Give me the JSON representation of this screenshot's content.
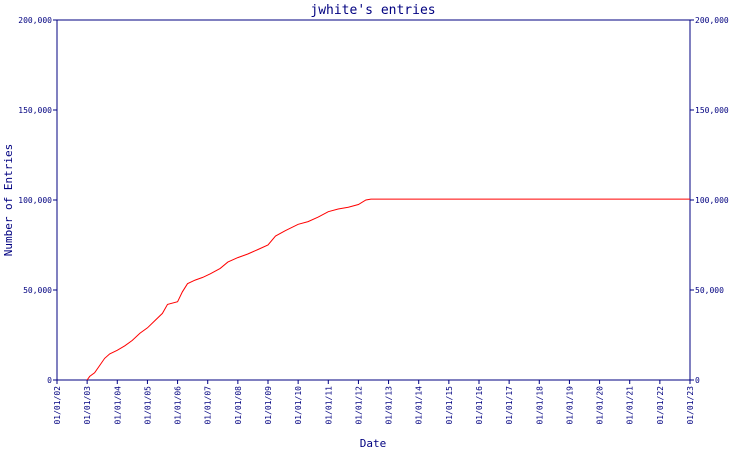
{
  "chart_data": {
    "type": "line",
    "title": "jwhite's entries",
    "xlabel": "Date",
    "ylabel": "Number of Entries",
    "x_ticks": [
      "01/01/02",
      "01/01/03",
      "01/01/04",
      "01/01/05",
      "01/01/06",
      "01/01/07",
      "01/01/08",
      "01/01/09",
      "01/01/10",
      "01/01/11",
      "01/01/12",
      "01/01/13",
      "01/01/14",
      "01/01/15",
      "01/01/16",
      "01/01/17",
      "01/01/18",
      "01/01/19",
      "01/01/20",
      "01/01/21",
      "01/01/22",
      "01/01/23"
    ],
    "y_ticks": [
      "0",
      "50,000",
      "100,000",
      "150,000",
      "200,000"
    ],
    "ylim": [
      0,
      200000
    ],
    "xlim": [
      "2002-01-01",
      "2023-01-01"
    ],
    "grid": false,
    "colors": {
      "axis": "#000080",
      "line": "#ff0000",
      "background": "#ffffff"
    },
    "series": [
      {
        "values": [
          {
            "x": "2003-01-01",
            "y": 0
          },
          {
            "x": "2003-02-01",
            "y": 2000
          },
          {
            "x": "2003-04-01",
            "y": 4000
          },
          {
            "x": "2003-06-01",
            "y": 8000
          },
          {
            "x": "2003-08-01",
            "y": 12000
          },
          {
            "x": "2003-10-01",
            "y": 14500
          },
          {
            "x": "2004-01-01",
            "y": 16500
          },
          {
            "x": "2004-04-01",
            "y": 19000
          },
          {
            "x": "2004-07-01",
            "y": 22000
          },
          {
            "x": "2004-10-01",
            "y": 26000
          },
          {
            "x": "2005-01-01",
            "y": 29000
          },
          {
            "x": "2005-04-01",
            "y": 33000
          },
          {
            "x": "2005-07-01",
            "y": 37000
          },
          {
            "x": "2005-09-01",
            "y": 42000
          },
          {
            "x": "2006-01-01",
            "y": 43500
          },
          {
            "x": "2006-03-01",
            "y": 49000
          },
          {
            "x": "2006-05-01",
            "y": 53500
          },
          {
            "x": "2006-08-01",
            "y": 55500
          },
          {
            "x": "2006-11-01",
            "y": 57000
          },
          {
            "x": "2007-02-01",
            "y": 59000
          },
          {
            "x": "2007-06-01",
            "y": 62000
          },
          {
            "x": "2007-09-01",
            "y": 65500
          },
          {
            "x": "2008-01-01",
            "y": 68000
          },
          {
            "x": "2008-05-01",
            "y": 70000
          },
          {
            "x": "2008-09-01",
            "y": 72500
          },
          {
            "x": "2009-01-01",
            "y": 75000
          },
          {
            "x": "2009-04-01",
            "y": 80000
          },
          {
            "x": "2009-08-01",
            "y": 83000
          },
          {
            "x": "2010-01-01",
            "y": 86500
          },
          {
            "x": "2010-05-01",
            "y": 88000
          },
          {
            "x": "2010-09-01",
            "y": 90500
          },
          {
            "x": "2011-01-01",
            "y": 93500
          },
          {
            "x": "2011-05-01",
            "y": 95000
          },
          {
            "x": "2011-09-01",
            "y": 96000
          },
          {
            "x": "2012-01-01",
            "y": 97500
          },
          {
            "x": "2012-04-01",
            "y": 100000
          },
          {
            "x": "2012-06-01",
            "y": 100500
          },
          {
            "x": "2023-01-01",
            "y": 100500
          }
        ]
      }
    ]
  }
}
